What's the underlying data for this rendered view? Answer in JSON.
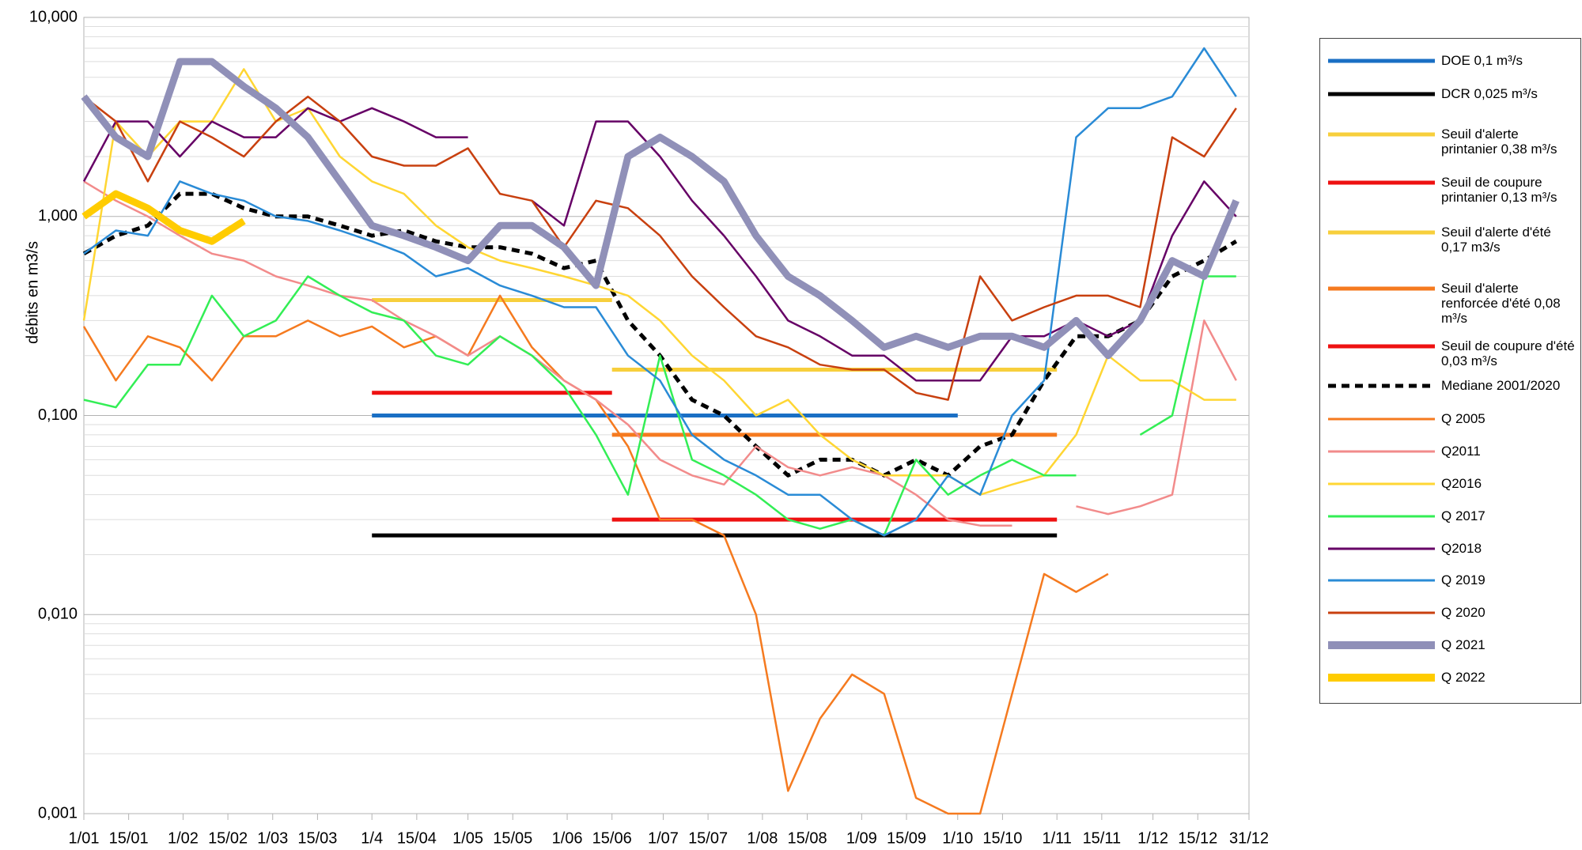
{
  "chart_data": {
    "type": "line",
    "y_label": "débits en m3/s",
    "log_y": true,
    "grid": true,
    "xlim": [
      1,
      365
    ],
    "xticks": [
      {
        "value": 1,
        "label": "1/01"
      },
      {
        "value": 15,
        "label": "15/01"
      },
      {
        "value": 32,
        "label": "1/02"
      },
      {
        "value": 46,
        "label": "15/02"
      },
      {
        "value": 60,
        "label": "1/03"
      },
      {
        "value": 74,
        "label": "15/03"
      },
      {
        "value": 91,
        "label": "1/4"
      },
      {
        "value": 105,
        "label": "15/04"
      },
      {
        "value": 121,
        "label": "1/05"
      },
      {
        "value": 135,
        "label": "15/05"
      },
      {
        "value": 152,
        "label": "1/06"
      },
      {
        "value": 166,
        "label": "15/06"
      },
      {
        "value": 182,
        "label": "1/07"
      },
      {
        "value": 196,
        "label": "15/07"
      },
      {
        "value": 213,
        "label": "1/08"
      },
      {
        "value": 227,
        "label": "15/08"
      },
      {
        "value": 244,
        "label": "1/09"
      },
      {
        "value": 258,
        "label": "15/09"
      },
      {
        "value": 274,
        "label": "1/10"
      },
      {
        "value": 288,
        "label": "15/10"
      },
      {
        "value": 305,
        "label": "1/11"
      },
      {
        "value": 319,
        "label": "15/11"
      },
      {
        "value": 335,
        "label": "1/12"
      },
      {
        "value": 349,
        "label": "15/12"
      },
      {
        "value": 365,
        "label": "31/12"
      }
    ],
    "ylim": [
      0.001,
      10
    ],
    "yticks": [
      {
        "value": 0.001,
        "label": "0,001"
      },
      {
        "value": 0.01,
        "label": "0,010"
      },
      {
        "value": 0.1,
        "label": "0,100"
      },
      {
        "value": 1,
        "label": "1,000"
      },
      {
        "value": 10,
        "label": "10,000"
      }
    ],
    "x": [
      1,
      11,
      21,
      31,
      41,
      51,
      61,
      71,
      81,
      91,
      101,
      111,
      121,
      131,
      141,
      151,
      161,
      171,
      181,
      191,
      201,
      211,
      221,
      231,
      241,
      251,
      261,
      271,
      281,
      291,
      301,
      311,
      321,
      331,
      341,
      351,
      361
    ],
    "series": [
      {
        "name": "DOE 0,1 m³/s",
        "color": "#1a6fc4",
        "x": [
          91,
          274
        ],
        "values": [
          0.1,
          0.1
        ]
      },
      {
        "name": "DCR 0,025 m³/s",
        "color": "#000000",
        "x": [
          91,
          305
        ],
        "values": [
          0.025,
          0.025
        ]
      },
      {
        "name": "Seuil d'alerte printanier 0,38 m³/s",
        "color": "#f7cf3c",
        "x": [
          91,
          166
        ],
        "values": [
          0.38,
          0.38
        ]
      },
      {
        "name": "Seuil de coupure printanier 0,13 m³/s",
        "color": "#ee1111",
        "x": [
          91,
          166
        ],
        "values": [
          0.13,
          0.13
        ]
      },
      {
        "name": "Seuil d'alerte d'été 0,17 m3/s",
        "color": "#f7cf3c",
        "x": [
          166,
          305
        ],
        "values": [
          0.17,
          0.17
        ]
      },
      {
        "name": "Seuil d'alerte renforcée d'été 0,08 m³/s",
        "color": "#f57a1f",
        "x": [
          166,
          305
        ],
        "values": [
          0.08,
          0.08
        ]
      },
      {
        "name": "Seuil de coupure d'été 0,03 m³/s",
        "color": "#ee1111",
        "x": [
          166,
          305
        ],
        "values": [
          0.03,
          0.03
        ]
      },
      {
        "name": "Mediane 2001/2020",
        "color": "#000000",
        "dash": true,
        "values": [
          0.65,
          0.8,
          0.9,
          1.3,
          1.3,
          1.1,
          1.0,
          1.0,
          0.9,
          0.8,
          0.85,
          0.75,
          0.7,
          0.7,
          0.65,
          0.55,
          0.6,
          0.3,
          0.2,
          0.12,
          0.1,
          0.07,
          0.05,
          0.06,
          0.06,
          0.05,
          0.06,
          0.05,
          0.07,
          0.08,
          0.15,
          0.25,
          0.25,
          0.3,
          0.5,
          0.6,
          0.75
        ]
      },
      {
        "name": "Q 2005",
        "color": "#f57a1f",
        "values": [
          0.28,
          0.15,
          0.25,
          0.22,
          0.15,
          0.25,
          0.25,
          0.3,
          0.25,
          0.28,
          0.22,
          0.25,
          0.2,
          0.4,
          0.22,
          0.15,
          0.12,
          0.07,
          0.03,
          0.03,
          0.025,
          0.01,
          0.0013,
          0.003,
          0.005,
          0.004,
          0.0012,
          0.001,
          0.001,
          0.004,
          0.016,
          0.013,
          0.016,
          null,
          null,
          null,
          null
        ]
      },
      {
        "name": "Q2011",
        "color": "#f28b8b",
        "values": [
          1.5,
          1.2,
          1.0,
          0.8,
          0.65,
          0.6,
          0.5,
          0.45,
          0.4,
          0.38,
          0.3,
          0.25,
          0.2,
          0.25,
          0.2,
          0.15,
          0.12,
          0.09,
          0.06,
          0.05,
          0.045,
          0.07,
          0.055,
          0.05,
          0.055,
          0.05,
          0.04,
          0.03,
          0.028,
          0.028,
          null,
          0.035,
          0.032,
          0.035,
          0.04,
          0.3,
          0.15
        ]
      },
      {
        "name": "Q2016",
        "color": "#ffd633",
        "values": [
          0.3,
          3,
          2,
          3,
          3,
          5.5,
          3,
          3.5,
          2,
          1.5,
          1.3,
          0.9,
          0.7,
          0.6,
          0.55,
          0.5,
          0.45,
          0.4,
          0.3,
          0.2,
          0.15,
          0.1,
          0.12,
          0.08,
          0.06,
          0.05,
          0.05,
          0.05,
          0.04,
          0.045,
          0.05,
          0.08,
          0.2,
          0.15,
          0.15,
          0.12,
          0.12
        ]
      },
      {
        "name": "Q 2017",
        "color": "#33ee55",
        "values": [
          0.12,
          0.11,
          0.18,
          0.18,
          0.4,
          0.25,
          0.3,
          0.5,
          0.4,
          0.33,
          0.3,
          0.2,
          0.18,
          0.25,
          0.2,
          0.14,
          0.08,
          0.04,
          0.2,
          0.06,
          0.05,
          0.04,
          0.03,
          0.027,
          0.03,
          0.025,
          0.06,
          0.04,
          0.05,
          0.06,
          0.05,
          0.05,
          null,
          0.08,
          0.1,
          0.5,
          0.5
        ]
      },
      {
        "name": "Q2018",
        "color": "#660066",
        "values": [
          1.5,
          3,
          3,
          2,
          3,
          2.5,
          2.5,
          3.5,
          3,
          3.5,
          3,
          2.5,
          2.5,
          null,
          1.2,
          0.9,
          3,
          3,
          2,
          1.2,
          0.8,
          0.5,
          0.3,
          0.25,
          0.2,
          0.2,
          0.15,
          0.15,
          0.15,
          0.25,
          0.25,
          0.3,
          0.25,
          0.3,
          0.8,
          1.5,
          1.0
        ]
      },
      {
        "name": "Q 2019",
        "color": "#2a8bd6",
        "values": [
          0.65,
          0.85,
          0.8,
          1.5,
          1.3,
          1.2,
          1.0,
          0.95,
          0.85,
          0.75,
          0.65,
          0.5,
          0.55,
          0.45,
          0.4,
          0.35,
          0.35,
          0.2,
          0.15,
          0.08,
          0.06,
          0.05,
          0.04,
          0.04,
          0.03,
          0.025,
          0.03,
          0.05,
          0.04,
          0.1,
          0.15,
          2.5,
          3.5,
          3.5,
          4,
          7,
          4
        ]
      },
      {
        "name": "Q 2020",
        "color": "#c8400f",
        "values": [
          4,
          3,
          1.5,
          3,
          2.5,
          2,
          3,
          4,
          3,
          2,
          1.8,
          1.8,
          2.2,
          1.3,
          1.2,
          0.7,
          1.2,
          1.1,
          0.8,
          0.5,
          0.35,
          0.25,
          0.22,
          0.18,
          0.17,
          0.17,
          0.13,
          0.12,
          0.5,
          0.3,
          0.35,
          0.4,
          0.4,
          0.35,
          2.5,
          2,
          3.5
        ]
      },
      {
        "name": "Q 2021",
        "color": "#9090b8",
        "thick": true,
        "values": [
          4,
          2.5,
          2,
          6,
          6,
          4.5,
          3.5,
          2.5,
          1.5,
          0.9,
          0.8,
          0.7,
          0.6,
          0.9,
          0.9,
          0.7,
          0.45,
          2,
          2.5,
          2,
          1.5,
          0.8,
          0.5,
          0.4,
          0.3,
          0.22,
          0.25,
          0.22,
          0.25,
          0.25,
          0.22,
          0.3,
          0.2,
          0.3,
          0.6,
          0.5,
          1.2
        ]
      },
      {
        "name": "Q 2022",
        "color": "#ffcc00",
        "thick": true,
        "values": [
          1.0,
          1.3,
          1.1,
          0.85,
          0.75,
          0.95,
          null,
          null,
          null,
          null,
          null,
          null,
          null,
          null,
          null,
          null,
          null,
          null,
          null,
          null,
          null,
          null,
          null,
          null,
          null,
          null,
          null,
          null,
          null,
          null,
          null,
          null,
          null,
          null,
          null,
          null,
          null
        ]
      }
    ]
  }
}
